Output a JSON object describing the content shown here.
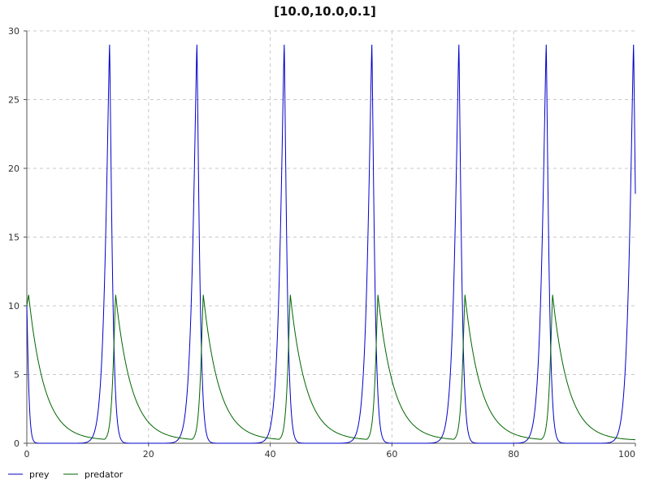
{
  "chart_data": {
    "type": "line",
    "title": "[10.0,10.0,0.1]",
    "xlabel": "",
    "ylabel": "",
    "xlim": [
      0,
      100
    ],
    "ylim": [
      0,
      30
    ],
    "x_ticks": [
      "0",
      "20",
      "40",
      "60",
      "80",
      "100"
    ],
    "y_ticks": [
      "0",
      "5",
      "10",
      "15",
      "20",
      "25",
      "30"
    ],
    "grid": true,
    "legend_position": "bottom-left",
    "series": [
      {
        "name": "prey",
        "color": "#0000cc",
        "peak_value": 29.0,
        "peak_times": [
          13.6,
          27.95,
          42.3,
          56.7,
          71.0,
          85.35,
          99.7
        ],
        "start_value": 10.0,
        "trough_value": 0.0
      },
      {
        "name": "predator",
        "color": "#006600",
        "peak_value": 10.8,
        "peak_times": [
          0.3,
          14.6,
          29.0,
          43.3,
          57.7,
          72.0,
          86.4
        ],
        "start_value": 10.0,
        "trough_value": 0.2
      }
    ]
  }
}
